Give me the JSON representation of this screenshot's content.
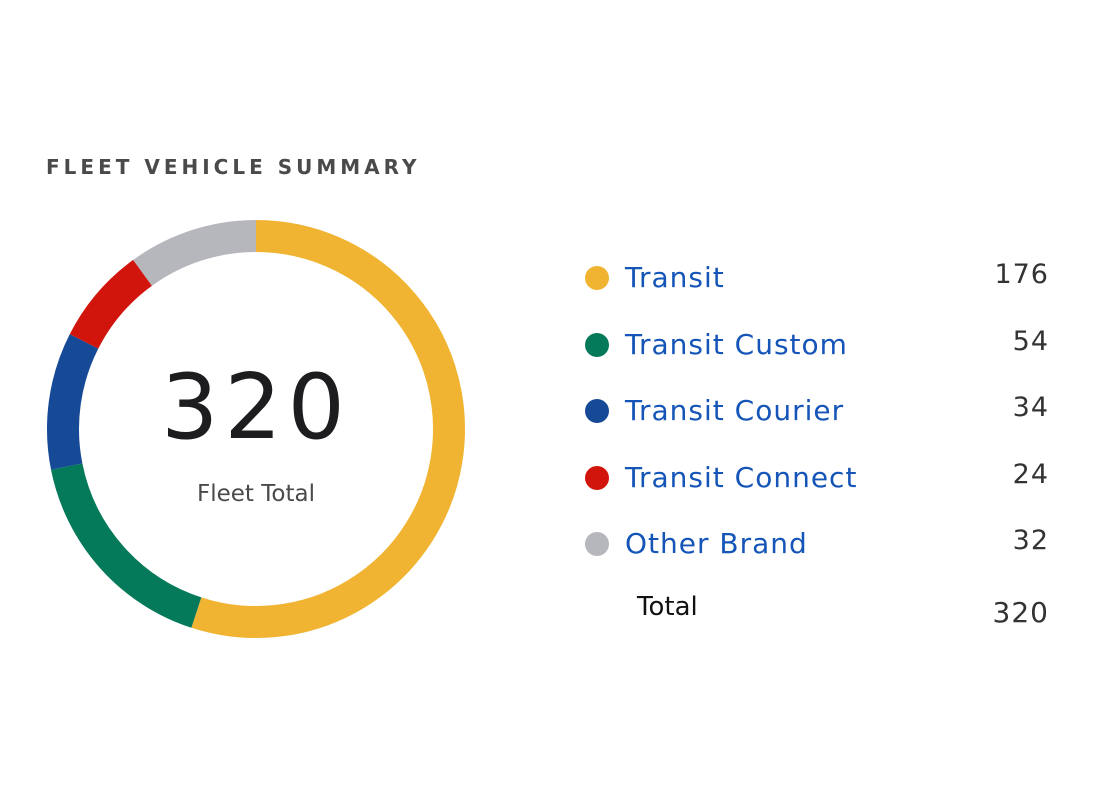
{
  "title": "FLEET VEHICLE SUMMARY",
  "center": {
    "value": "320",
    "label": "Fleet Total"
  },
  "total_row": {
    "label": "Total",
    "value": "320"
  },
  "chart_data": {
    "type": "pie",
    "style": "donut",
    "title": "FLEET VEHICLE SUMMARY",
    "categories": [
      "Transit",
      "Transit Custom",
      "Transit Courier",
      "Transit Connect",
      "Other Brand"
    ],
    "values": [
      176,
      54,
      34,
      24,
      32
    ],
    "colors": [
      "#f0b432",
      "#047a5a",
      "#174a96",
      "#d1150d",
      "#b6b6bd"
    ],
    "total": 320,
    "legend_position": "right"
  }
}
